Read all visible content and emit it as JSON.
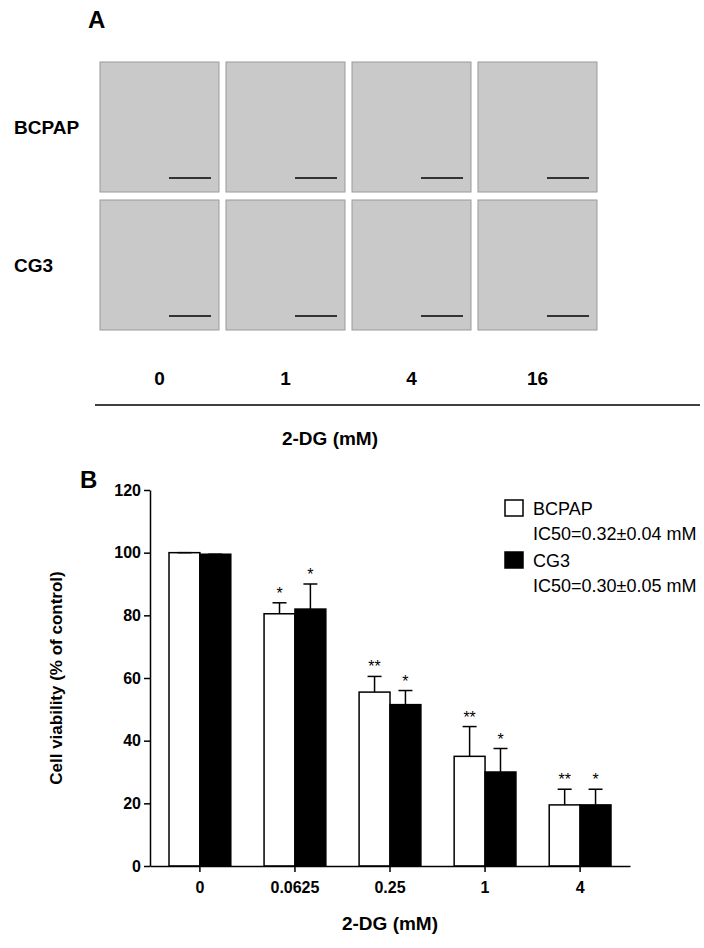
{
  "panel_a": {
    "label": "A",
    "rows": [
      "BCPAP",
      "CG3"
    ],
    "columns": [
      0,
      1,
      4,
      16
    ],
    "x_label": "2-DG (mM)"
  },
  "chart_data": {
    "type": "bar",
    "panel_label": "B",
    "categories": [
      "0",
      "0.0625",
      "0.25",
      "1",
      "4"
    ],
    "series": [
      {
        "name": "BCPAP",
        "color": "#ffffff",
        "values": [
          100,
          80.5,
          55.5,
          35,
          19.5
        ],
        "errors": [
          0,
          3.5,
          5,
          9.5,
          5
        ],
        "significance": [
          null,
          "*",
          "**",
          "**",
          "**"
        ],
        "ic50": "IC50=0.32±0.04 mM"
      },
      {
        "name": "CG3",
        "color": "#000000",
        "values": [
          99.5,
          82,
          51.5,
          30,
          19.5
        ],
        "errors": [
          0,
          8,
          4.5,
          7.5,
          5
        ],
        "significance": [
          null,
          "*",
          "*",
          "*",
          "*"
        ],
        "ic50": "IC50=0.30±0.05 mM"
      }
    ],
    "x_label": "2-DG (mM)",
    "y_label": "Cell viability (% of control)",
    "ylim": [
      0,
      120
    ],
    "yticks": [
      0,
      20,
      40,
      60,
      80,
      100,
      120
    ],
    "legend": "top-right",
    "grid": false
  }
}
